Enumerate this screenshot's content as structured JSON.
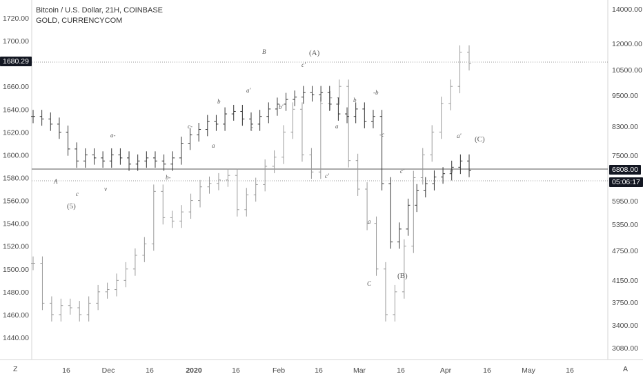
{
  "legend": {
    "main": "Bitcoin / U.S. Dollar, 21H, COINBASE",
    "overlay": "GOLD, CURRENCYCOM"
  },
  "axis_left": {
    "ticks": [
      "1720.00",
      "1700.00",
      "1680.00",
      "1660.00",
      "1640.00",
      "1620.00",
      "1600.00",
      "1580.00",
      "1560.00",
      "1540.00",
      "1520.00",
      "1500.00",
      "1480.00",
      "1460.00",
      "1440.00"
    ]
  },
  "axis_right": {
    "ticks": [
      "14000.00",
      "12000.00",
      "10500.00",
      "9500.00",
      "8300.00",
      "7500.00",
      "6800.00",
      "5950.00",
      "5350.00",
      "4750.00",
      "4150.00",
      "3750.00",
      "3400.00",
      "3080.00"
    ]
  },
  "axis_x": {
    "ticks": [
      "16",
      "Dec",
      "16",
      "2020",
      "16",
      "Feb",
      "16",
      "Mar",
      "16",
      "Apr",
      "16",
      "May",
      "16"
    ]
  },
  "badges": {
    "gold_price": "1680.29",
    "btc_price": "6808.00",
    "countdown": "05:06:17"
  },
  "buttons": {
    "left": "Z",
    "right": "A"
  },
  "colors": {
    "grid_line": "#dcdcdc",
    "bar": "#333333",
    "gold_bar": "#9a9a9a",
    "badge_dark": "#131722",
    "axis": "#d6d6d6"
  },
  "wave_labels": [
    "A",
    "c",
    "(5)",
    "v",
    "a-",
    "c-",
    "b-",
    "b",
    "a",
    "a'",
    "c",
    "b'",
    "B",
    "c'",
    "(A)",
    "a",
    "b",
    "c'",
    "a",
    "-b",
    "-c",
    "a'",
    "C",
    "(B)",
    "(C)",
    "c'",
    "a"
  ],
  "chart_data": [
    {
      "type": "ohlc",
      "name": "Bitcoin / U.S. Dollar, 21H, COINBASE",
      "axis": "right",
      "scale": "log",
      "x_labels": [
        "16",
        "Dec",
        "16",
        "2020",
        "16",
        "Feb",
        "16",
        "Mar",
        "16",
        "Apr",
        "16",
        "May",
        "16"
      ],
      "ylim": [
        3000,
        14500
      ],
      "approx_close": [
        8800,
        8700,
        8500,
        8200,
        7600,
        7200,
        7400,
        7300,
        7200,
        7400,
        7300,
        7100,
        7200,
        7300,
        7200,
        7100,
        7300,
        7800,
        8100,
        8300,
        8600,
        8500,
        8900,
        9000,
        8700,
        8500,
        8800,
        9100,
        9300,
        9500,
        9600,
        9800,
        9700,
        9800,
        9300,
        8900,
        8800,
        9100,
        8600,
        8800,
        6500,
        5000,
        5300,
        5900,
        6300,
        6500,
        6700,
        6800,
        7000,
        7200,
        6900
      ]
    },
    {
      "type": "ohlc",
      "name": "GOLD, CURRENCYCOM",
      "axis": "left",
      "ylim": [
        1432,
        1728
      ],
      "approx_close": [
        1505,
        1470,
        1460,
        1468,
        1466,
        1460,
        1470,
        1480,
        1482,
        1490,
        1500,
        1512,
        1522,
        1568,
        1545,
        1542,
        1550,
        1560,
        1572,
        1575,
        1578,
        1582,
        1552,
        1565,
        1574,
        1590,
        1598,
        1620,
        1640,
        1600,
        1585,
        1645,
        1650,
        1660,
        1595,
        1570,
        1540,
        1500,
        1460,
        1480,
        1520,
        1580,
        1600,
        1620,
        1645,
        1660,
        1690,
        1680
      ]
    }
  ]
}
